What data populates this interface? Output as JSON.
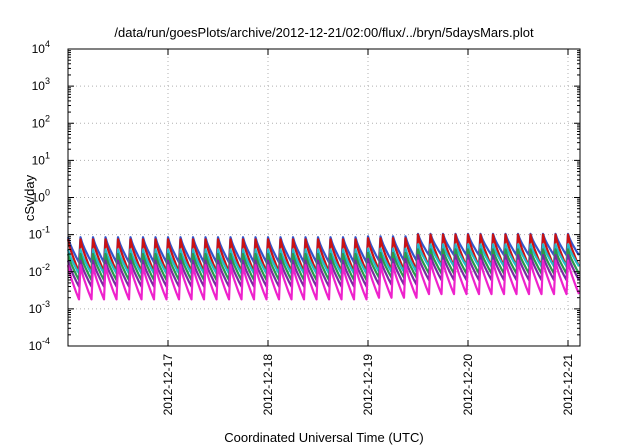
{
  "chart_data": {
    "type": "line",
    "title": "/data/run/goesPlots/archive/2012-12-21/02:00/flux/../bryn/5daysMars.plot",
    "xlabel": "Coordinated Universal Time (UTC)",
    "ylabel": "cSv/day",
    "y_scale": "log",
    "ylim": [
      0.0001,
      10000
    ],
    "y_ticks": [
      {
        "value": 0.0001,
        "base": "10",
        "exp": "-4"
      },
      {
        "value": 0.001,
        "base": "10",
        "exp": "-3"
      },
      {
        "value": 0.01,
        "base": "10",
        "exp": "-2"
      },
      {
        "value": 0.1,
        "base": "10",
        "exp": "-1"
      },
      {
        "value": 1,
        "base": "10",
        "exp": "0"
      },
      {
        "value": 10,
        "base": "10",
        "exp": "1"
      },
      {
        "value": 100,
        "base": "10",
        "exp": "2"
      },
      {
        "value": 1000,
        "base": "10",
        "exp": "3"
      },
      {
        "value": 10000,
        "base": "10",
        "exp": "4"
      }
    ],
    "x_range_days": [
      16.0,
      21.12
    ],
    "x_ticks": [
      {
        "label": "2012-12-17",
        "day": 17
      },
      {
        "label": "2012-12-18",
        "day": 18
      },
      {
        "label": "2012-12-19",
        "day": 19
      },
      {
        "label": "2012-12-20",
        "day": 20
      },
      {
        "label": "2012-12-21",
        "day": 21
      }
    ],
    "grid": true,
    "legend": "none",
    "series": [
      {
        "color": "#3355cc",
        "peak": [
          0.085,
          0.09,
          0.105
        ],
        "trough": [
          0.018,
          0.02,
          0.028
        ]
      },
      {
        "color": "#cc1111",
        "peak": [
          0.075,
          0.08,
          0.1
        ],
        "trough": [
          0.01,
          0.011,
          0.014
        ]
      },
      {
        "color": "#22bbcc",
        "peak": [
          0.04,
          0.042,
          0.055
        ],
        "trough": [
          0.009,
          0.01,
          0.014
        ]
      },
      {
        "color": "#2a9a4a",
        "peak": [
          0.03,
          0.032,
          0.04
        ],
        "trough": [
          0.006,
          0.007,
          0.009
        ]
      },
      {
        "color": "#7a2aa0",
        "peak": [
          0.02,
          0.022,
          0.028
        ],
        "trough": [
          0.004,
          0.0045,
          0.006
        ]
      },
      {
        "color": "#ee22cc",
        "peak": [
          0.015,
          0.016,
          0.02
        ],
        "trough": [
          0.0018,
          0.002,
          0.0025
        ]
      }
    ],
    "cycle_days": 0.125,
    "segment_days": [
      16.0,
      18.9,
      19.5,
      21.12
    ]
  }
}
